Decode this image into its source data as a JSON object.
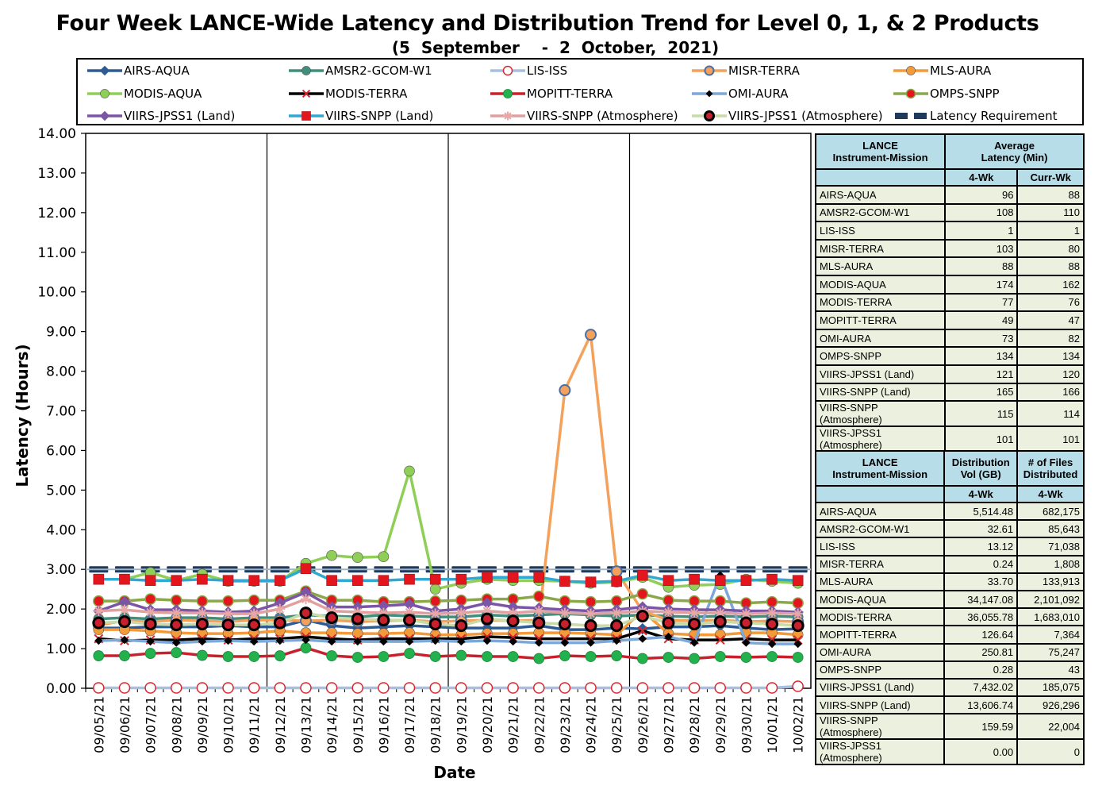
{
  "header": {
    "title": "Four Week LANCE-Wide Latency and Distribution Trend for Level 0, 1, & 2 Products",
    "subtitle": "(5  September    -  2  October,  2021)"
  },
  "chart_data": {
    "type": "line",
    "xlabel": "Date",
    "ylabel": "Latency (Hours)",
    "ylim": [
      0,
      14
    ],
    "yticks": [
      "0.00",
      "1.00",
      "2.00",
      "3.00",
      "4.00",
      "5.00",
      "6.00",
      "7.00",
      "8.00",
      "9.00",
      "10.00",
      "11.00",
      "12.00",
      "13.00",
      "14.00"
    ],
    "grid": "vertical lines at week boundaries",
    "legend_position": "top",
    "categories": [
      "09/05/21",
      "09/06/21",
      "09/07/21",
      "09/08/21",
      "09/09/21",
      "09/10/21",
      "09/11/21",
      "09/12/21",
      "09/13/21",
      "09/14/21",
      "09/15/21",
      "09/16/21",
      "09/17/21",
      "09/18/21",
      "09/19/21",
      "09/20/21",
      "09/21/21",
      "09/22/21",
      "09/23/21",
      "09/24/21",
      "09/25/21",
      "09/26/21",
      "09/27/21",
      "09/28/21",
      "09/29/21",
      "09/30/21",
      "10/01/21",
      "10/02/21"
    ],
    "series": [
      {
        "name": "AIRS-AQUA",
        "color": "#2e5b94",
        "marker": "diamond",
        "values": [
          1.52,
          1.52,
          1.55,
          1.55,
          1.55,
          1.58,
          1.55,
          1.55,
          1.72,
          1.58,
          1.52,
          1.55,
          1.58,
          1.55,
          1.52,
          1.52,
          1.52,
          1.58,
          1.48,
          1.48,
          1.52,
          1.5,
          1.55,
          1.55,
          1.58,
          1.52,
          1.48,
          1.5
        ]
      },
      {
        "name": "AMSR2-GCOM-W1",
        "color": "#3f8f7a",
        "marker": "circle",
        "values": [
          1.75,
          1.78,
          1.75,
          1.78,
          1.78,
          1.75,
          1.78,
          1.78,
          1.85,
          1.82,
          1.8,
          1.85,
          1.82,
          1.8,
          1.8,
          1.85,
          1.82,
          1.85,
          1.88,
          1.85,
          1.82,
          1.85,
          1.82,
          1.8,
          1.82,
          1.8,
          1.82,
          1.8
        ]
      },
      {
        "name": "LIS-ISS",
        "color": "#a9bfe0",
        "marker": "hollow",
        "values": [
          0.01,
          0.01,
          0.01,
          0.01,
          0.01,
          0.01,
          0.01,
          0.01,
          0.01,
          0.01,
          0.01,
          0.01,
          0.01,
          0.01,
          0.01,
          0.01,
          0.01,
          0.01,
          0.01,
          0.01,
          0.01,
          0.01,
          0.01,
          0.01,
          0.01,
          0.01,
          0.01,
          0.05
        ]
      },
      {
        "name": "MISR-TERRA",
        "color": "#f3a15b",
        "marker": "circle-blue",
        "values": [
          1.6,
          1.7,
          1.68,
          1.72,
          1.7,
          1.68,
          1.72,
          1.72,
          1.7,
          1.72,
          1.68,
          1.7,
          1.72,
          1.68,
          1.7,
          1.72,
          1.7,
          1.72,
          7.52,
          8.92,
          2.95,
          1.95,
          1.72,
          1.7,
          1.72,
          1.68,
          1.7,
          1.68
        ]
      },
      {
        "name": "MLS-AURA",
        "color": "#f39a3a",
        "marker": "circle",
        "values": [
          1.48,
          1.48,
          1.45,
          1.4,
          1.38,
          1.38,
          1.4,
          1.45,
          1.4,
          1.4,
          1.38,
          1.38,
          1.4,
          1.35,
          1.35,
          1.38,
          1.38,
          1.4,
          1.4,
          1.38,
          1.35,
          1.95,
          1.38,
          1.35,
          1.35,
          1.4,
          1.4,
          1.35
        ]
      },
      {
        "name": "MODIS-AQUA",
        "color": "#8fcf57",
        "marker": "circle",
        "values": [
          2.75,
          2.75,
          2.92,
          2.72,
          2.88,
          2.7,
          2.7,
          2.7,
          3.15,
          3.35,
          3.3,
          3.32,
          5.48,
          2.5,
          2.65,
          2.75,
          2.72,
          2.72,
          2.7,
          2.65,
          2.68,
          2.8,
          2.55,
          2.6,
          2.62,
          2.75,
          2.7,
          2.65
        ]
      },
      {
        "name": "MODIS-TERRA",
        "color": "#000000",
        "marker": "x-red",
        "values": [
          1.25,
          1.2,
          1.22,
          1.22,
          1.25,
          1.22,
          1.25,
          1.25,
          1.3,
          1.25,
          1.22,
          1.25,
          1.25,
          1.25,
          1.25,
          1.3,
          1.28,
          1.25,
          1.25,
          1.25,
          1.25,
          1.45,
          1.25,
          1.22,
          1.22,
          1.25,
          1.22,
          1.22
        ]
      },
      {
        "name": "MOPITT-TERRA",
        "color": "#c8202c",
        "marker": "circle-green",
        "values": [
          0.82,
          0.82,
          0.88,
          0.9,
          0.83,
          0.8,
          0.8,
          0.82,
          1.02,
          0.82,
          0.78,
          0.8,
          0.88,
          0.8,
          0.83,
          0.8,
          0.8,
          0.75,
          0.82,
          0.8,
          0.82,
          0.75,
          0.78,
          0.75,
          0.8,
          0.78,
          0.8,
          0.78
        ]
      },
      {
        "name": "OMI-AURA",
        "color": "#7ba8d8",
        "marker": "diamond-black",
        "values": [
          1.2,
          1.22,
          1.18,
          1.15,
          1.18,
          1.2,
          1.18,
          1.2,
          1.22,
          1.18,
          1.18,
          1.18,
          1.18,
          1.2,
          1.18,
          1.2,
          1.18,
          1.15,
          1.15,
          1.15,
          1.2,
          1.25,
          1.3,
          1.15,
          2.85,
          1.15,
          1.12,
          1.12
        ]
      },
      {
        "name": "OMPS-SNPP",
        "color": "#8aa84a",
        "marker": "circle-red",
        "values": [
          2.2,
          2.2,
          2.25,
          2.22,
          2.2,
          2.2,
          2.22,
          2.22,
          2.45,
          2.22,
          2.22,
          2.18,
          2.18,
          2.2,
          2.22,
          2.25,
          2.25,
          2.32,
          2.2,
          2.18,
          2.2,
          2.38,
          2.22,
          2.2,
          2.2,
          2.15,
          2.18,
          2.15
        ]
      },
      {
        "name": "VIIRS-JPSS1 (Land)",
        "color": "#7b55a6",
        "marker": "diamond",
        "values": [
          1.95,
          2.18,
          1.98,
          1.98,
          1.95,
          1.92,
          1.95,
          2.15,
          2.42,
          2.05,
          2.05,
          2.08,
          2.12,
          1.95,
          2.0,
          2.15,
          2.05,
          2.02,
          1.98,
          1.95,
          1.98,
          2.05,
          2.0,
          1.98,
          1.98,
          1.95,
          1.95,
          1.92
        ]
      },
      {
        "name": "VIIRS-SNPP (Land)",
        "color": "#2fa9d2",
        "marker": "square-red",
        "values": [
          2.75,
          2.75,
          2.72,
          2.72,
          2.75,
          2.72,
          2.72,
          2.72,
          3.02,
          2.72,
          2.72,
          2.72,
          2.75,
          2.75,
          2.75,
          2.8,
          2.8,
          2.8,
          2.7,
          2.68,
          2.7,
          2.85,
          2.72,
          2.75,
          2.72,
          2.72,
          2.75,
          2.72
        ]
      },
      {
        "name": "VIIRS-SNPP (Atmosphere)",
        "color": "#e0a0a0",
        "marker": "star",
        "values": [
          1.95,
          1.98,
          1.92,
          1.9,
          1.9,
          1.88,
          1.88,
          2.0,
          2.25,
          1.95,
          1.92,
          1.9,
          1.92,
          1.88,
          1.9,
          1.95,
          1.9,
          1.95,
          1.9,
          1.88,
          1.9,
          1.95,
          1.92,
          1.9,
          1.9,
          1.88,
          1.9,
          1.88
        ]
      },
      {
        "name": "VIIRS-JPSS1 (Atmosphere)",
        "color": "#c9dca8",
        "marker": "circle-black",
        "values": [
          1.65,
          1.68,
          1.62,
          1.6,
          1.62,
          1.6,
          1.6,
          1.65,
          1.9,
          1.78,
          1.75,
          1.72,
          1.72,
          1.62,
          1.58,
          1.75,
          1.7,
          1.65,
          1.62,
          1.58,
          1.58,
          1.82,
          1.65,
          1.62,
          1.68,
          1.65,
          1.62,
          1.58
        ]
      },
      {
        "name": "Latency Requirement",
        "color": "#1f3b5c",
        "marker": "dash",
        "values": [
          3,
          3,
          3,
          3,
          3,
          3,
          3,
          3,
          3,
          3,
          3,
          3,
          3,
          3,
          3,
          3,
          3,
          3,
          3,
          3,
          3,
          3,
          3,
          3,
          3,
          3,
          3,
          3
        ]
      }
    ]
  },
  "latency_table": {
    "headers": {
      "mission": "LANCE Instrument-Mission",
      "average": "Average Latency (Min)",
      "col1": "4-Wk",
      "col2": "Curr-Wk"
    },
    "rows": [
      {
        "name": "AIRS-AQUA",
        "wk4": "96",
        "cur": "88"
      },
      {
        "name": "AMSR2-GCOM-W1",
        "wk4": "108",
        "cur": "110"
      },
      {
        "name": "LIS-ISS",
        "wk4": "1",
        "cur": "1"
      },
      {
        "name": "MISR-TERRA",
        "wk4": "103",
        "cur": "80"
      },
      {
        "name": "MLS-AURA",
        "wk4": "88",
        "cur": "88"
      },
      {
        "name": "MODIS-AQUA",
        "wk4": "174",
        "cur": "162"
      },
      {
        "name": "MODIS-TERRA",
        "wk4": "77",
        "cur": "76"
      },
      {
        "name": "MOPITT-TERRA",
        "wk4": "49",
        "cur": "47"
      },
      {
        "name": "OMI-AURA",
        "wk4": "73",
        "cur": "82"
      },
      {
        "name": "OMPS-SNPP",
        "wk4": "134",
        "cur": "134"
      },
      {
        "name": "VIIRS-JPSS1 (Land)",
        "wk4": "121",
        "cur": "120"
      },
      {
        "name": "VIIRS-SNPP (Land)",
        "wk4": "165",
        "cur": "166"
      },
      {
        "name": "VIIRS-SNPP (Atmosphere)",
        "wk4": "115",
        "cur": "114"
      },
      {
        "name": "VIIRS-JPSS1 (Atmosphere)",
        "wk4": "101",
        "cur": "101"
      }
    ]
  },
  "distribution_table": {
    "headers": {
      "mission": "LANCE Instrument-Mission",
      "vol": "Distribution Vol (GB)",
      "files": "# of Files Distributed",
      "col1": "4-Wk",
      "col2": "4-Wk"
    },
    "rows": [
      {
        "name": "AIRS-AQUA",
        "vol": "5,514.48",
        "files": "682,175"
      },
      {
        "name": "AMSR2-GCOM-W1",
        "vol": "32.61",
        "files": "85,643"
      },
      {
        "name": "LIS-ISS",
        "vol": "13.12",
        "files": "71,038"
      },
      {
        "name": "MISR-TERRA",
        "vol": "0.24",
        "files": "1,808"
      },
      {
        "name": "MLS-AURA",
        "vol": "33.70",
        "files": "133,913"
      },
      {
        "name": "MODIS-AQUA",
        "vol": "34,147.08",
        "files": "2,101,092"
      },
      {
        "name": "MODIS-TERRA",
        "vol": "36,055.78",
        "files": "1,683,010"
      },
      {
        "name": "MOPITT-TERRA",
        "vol": "126.64",
        "files": "7,364"
      },
      {
        "name": "OMI-AURA",
        "vol": "250.81",
        "files": "75,247"
      },
      {
        "name": "OMPS-SNPP",
        "vol": "0.28",
        "files": "43"
      },
      {
        "name": "VIIRS-JPSS1 (Land)",
        "vol": "7,432.02",
        "files": "185,075"
      },
      {
        "name": "VIIRS-SNPP (Land)",
        "vol": "13,606.74",
        "files": "926,296"
      },
      {
        "name": "VIIRS-SNPP (Atmosphere)",
        "vol": "159.59",
        "files": "22,004"
      },
      {
        "name": "VIIRS-JPSS1 (Atmosphere)",
        "vol": "0.00",
        "files": "0"
      }
    ]
  }
}
